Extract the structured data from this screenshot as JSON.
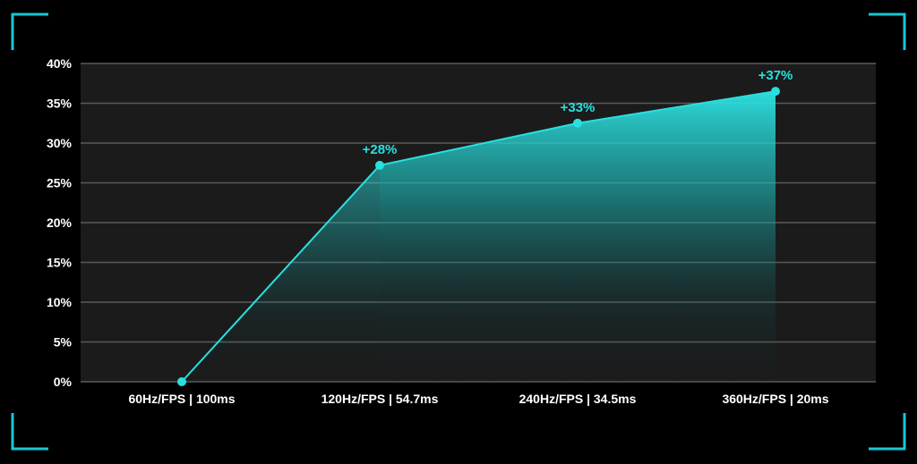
{
  "colors": {
    "background": "#000000",
    "plot_background": "#1b1b1b",
    "grid": "#5a5a5a",
    "accent": "#28e0e0",
    "frame_corners": "#19c7d6"
  },
  "chart_data": {
    "type": "area",
    "title": "",
    "xlabel": "",
    "ylabel": "",
    "categories": [
      "60Hz/FPS | 100ms",
      "120Hz/FPS | 54.7ms",
      "240Hz/FPS | 34.5ms",
      "360Hz/FPS | 20ms"
    ],
    "values": [
      0,
      27.2,
      32.5,
      36.5
    ],
    "data_labels": [
      "",
      "+28%",
      "+33%",
      "+37%"
    ],
    "ylim": [
      0,
      40
    ],
    "yticks": [
      0,
      5,
      10,
      15,
      20,
      25,
      30,
      35,
      40
    ],
    "ytick_labels": [
      "0%",
      "5%",
      "10%",
      "15%",
      "20%",
      "25%",
      "30%",
      "35%",
      "40%"
    ],
    "grid": true,
    "legend": "none"
  }
}
